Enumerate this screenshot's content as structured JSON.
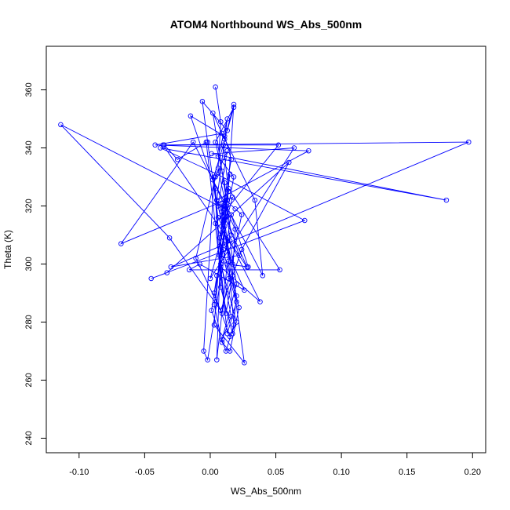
{
  "chart_data": {
    "type": "line",
    "title": "ATOM4 Northbound WS_Abs_500nm",
    "xlabel": "WS_Abs_500nm",
    "ylabel": "Theta (K)",
    "xlim": [
      -0.125,
      0.21
    ],
    "ylim": [
      235,
      375
    ],
    "xticks": [
      -0.1,
      -0.05,
      0.0,
      0.05,
      0.1,
      0.15,
      0.2
    ],
    "xtick_labels": [
      "-0.10",
      "-0.05",
      "0.00",
      "0.05",
      "0.10",
      "0.15",
      "0.20"
    ],
    "yticks": [
      240,
      260,
      280,
      300,
      320,
      340,
      360
    ],
    "ytick_labels": [
      "240",
      "260",
      "280",
      "300",
      "320",
      "340",
      "360"
    ],
    "grid": false,
    "color": "#0000ff",
    "markers": "open-circle",
    "series": [
      {
        "points": [
          [
            0.004,
            361.0
          ],
          [
            0.008,
            349.0
          ],
          [
            0.006,
            333.0
          ],
          [
            0.012,
            320.0
          ],
          [
            0.01,
            305.0
          ],
          [
            0.003,
            290.0
          ],
          [
            0.015,
            275.0
          ],
          [
            0.02,
            280.0
          ],
          [
            0.008,
            300.0
          ],
          [
            0.013,
            322.0
          ],
          [
            0.018,
            355.0
          ],
          [
            0.011,
            343.0
          ],
          [
            0.002,
            352.0
          ],
          [
            0.009,
            332.0
          ],
          [
            0.016,
            310.0
          ],
          [
            0.005,
            296.0
          ],
          [
            0.001,
            284.0
          ],
          [
            0.012,
            270.0
          ],
          [
            0.018,
            279.0
          ],
          [
            0.014,
            301.0
          ],
          [
            0.009,
            318.0
          ],
          [
            0.016,
            336.0
          ],
          [
            0.011,
            344.0
          ],
          [
            -0.015,
            351.0
          ],
          [
            0.004,
            326.0
          ],
          [
            0.007,
            306.0
          ],
          [
            0.02,
            287.0
          ],
          [
            0.013,
            276.0
          ],
          [
            -0.003,
            342.0
          ],
          [
            -0.025,
            336.0
          ],
          [
            -0.035,
            341.0
          ],
          [
            0.052,
            341.0
          ],
          [
            0.004,
            314.0
          ],
          [
            0.026,
            291.0
          ],
          [
            -0.008,
            300.0
          ],
          [
            -0.016,
            298.0
          ],
          [
            0.053,
            298.0
          ],
          [
            0.014,
            326.0
          ],
          [
            0.011,
            319.0
          ],
          [
            -0.114,
            348.0
          ],
          [
            -0.031,
            309.0
          ],
          [
            0.008,
            284.0
          ],
          [
            0.024,
            305.0
          ],
          [
            0.06,
            335.0
          ],
          [
            -0.033,
            297.0
          ],
          [
            -0.045,
            295.0
          ],
          [
            0.072,
            315.0
          ],
          [
            0.005,
            331.0
          ],
          [
            -0.038,
            340.0
          ],
          [
            0.18,
            322.0
          ],
          [
            0.001,
            338.0
          ],
          [
            0.064,
            340.0
          ],
          [
            0.0,
            295.0
          ],
          [
            0.017,
            323.0
          ],
          [
            -0.068,
            307.0
          ],
          [
            -0.013,
            342.0
          ],
          [
            0.04,
            296.0
          ],
          [
            0.034,
            322.0
          ],
          [
            0.009,
            345.0
          ],
          [
            -0.042,
            341.0
          ],
          [
            0.075,
            339.0
          ],
          [
            0.005,
            322.0
          ],
          [
            0.028,
            299.0
          ],
          [
            -0.036,
            341.0
          ],
          [
            0.197,
            342.0
          ],
          [
            -0.03,
            299.0
          ],
          [
            0.022,
            303.0
          ],
          [
            0.01,
            320.0
          ],
          [
            0.003,
            279.0
          ],
          [
            0.026,
            266.0
          ],
          [
            0.009,
            321.0
          ],
          [
            0.005,
            267.0
          ],
          [
            0.013,
            300.0
          ],
          [
            0.029,
            299.0
          ],
          [
            0.016,
            317.0
          ],
          [
            -0.002,
            267.0
          ],
          [
            -0.005,
            270.0
          ],
          [
            0.003,
            330.0
          ],
          [
            0.008,
            292.0
          ],
          [
            0.017,
            276.0
          ],
          [
            0.02,
            289.0
          ],
          [
            0.012,
            308.0
          ],
          [
            0.005,
            322.0
          ],
          [
            0.013,
            350.0
          ],
          [
            0.006,
            337.0
          ],
          [
            0.018,
            330.0
          ],
          [
            0.011,
            313.0
          ],
          [
            0.003,
            286.0
          ],
          [
            0.009,
            273.0
          ],
          [
            0.015,
            270.0
          ],
          [
            0.022,
            285.0
          ],
          [
            0.007,
            309.0
          ],
          [
            0.014,
            325.0
          ],
          [
            0.01,
            341.0
          ],
          [
            0.002,
            329.0
          ],
          [
            0.019,
            312.0
          ],
          [
            0.017,
            296.0
          ],
          [
            0.012,
            283.0
          ],
          [
            0.008,
            299.0
          ],
          [
            0.038,
            287.0
          ],
          [
            0.006,
            316.0
          ],
          [
            -0.002,
            342.0
          ],
          [
            -0.006,
            356.0
          ],
          [
            0.013,
            346.0
          ],
          [
            0.018,
            354.0
          ],
          [
            0.004,
            342.0
          ],
          [
            0.011,
            328.0
          ],
          [
            0.015,
            308.0
          ],
          [
            0.02,
            293.0
          ],
          [
            0.009,
            274.0
          ],
          [
            0.016,
            282.0
          ],
          [
            0.007,
            303.0
          ],
          [
            0.012,
            322.0
          ],
          [
            0.019,
            319.0
          ],
          [
            0.024,
            317.0
          ],
          [
            0.014,
            295.0
          ],
          [
            0.009,
            283.0
          ],
          [
            -0.011,
            302.0
          ],
          [
            0.004,
            330.0
          ],
          [
            0.013,
            339.0
          ],
          [
            0.006,
            320.0
          ],
          [
            0.017,
            300.0
          ],
          [
            0.01,
            312.0
          ],
          [
            0.015,
            331.0
          ],
          [
            0.012,
            323.0
          ]
        ]
      }
    ]
  }
}
